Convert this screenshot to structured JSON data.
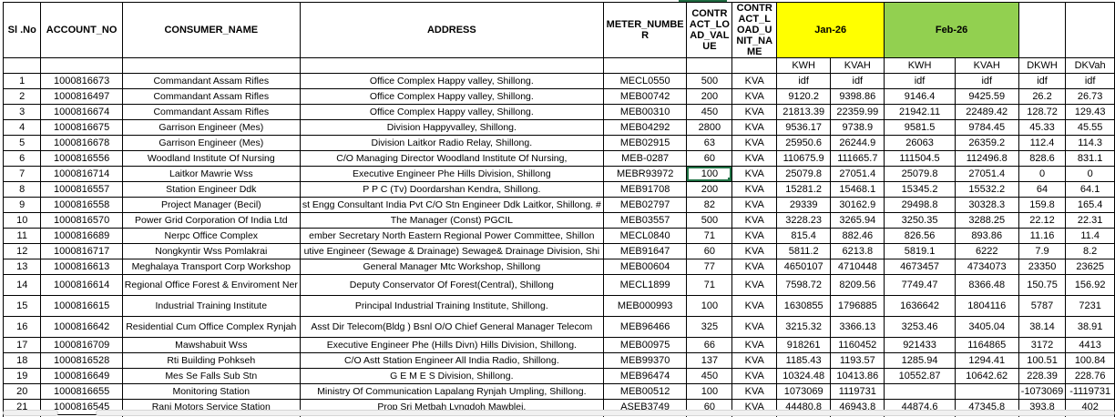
{
  "columns": {
    "sl_no": "Sl .No",
    "account_no": "ACCOUNT_NO",
    "consumer_name": "CONSUMER_NAME",
    "address": "ADDRESS",
    "meter_number": "METER_NUMBER",
    "contract_load_value": "CONTRACT_LOAD_VALUE",
    "contract_load_unit_name": "CONTRACT_LOAD_UNIT_NAME"
  },
  "month_groups": [
    {
      "label": "Jan-26",
      "color": "#FFFF00"
    },
    {
      "label": "Feb-26",
      "color": "#92D050"
    }
  ],
  "sub_headers": [
    "KWH",
    "KVAH",
    "KWH",
    "KVAH",
    "DKWH",
    "DKVah"
  ],
  "selection": {
    "row_sl": "7",
    "column_key": "load",
    "column": "CONTRACT_LOAD_VALUE",
    "value": "100",
    "border_color": "#217346"
  },
  "rows": [
    {
      "sl": "1",
      "account": "1000816673",
      "name": "Commandant Assam Rifles",
      "address": "Office Complex Happy valley, Shillong.",
      "meter": "MECL0550",
      "load": "500",
      "unit": "KVA",
      "jan_kwh": "idf",
      "jan_kvah": "idf",
      "feb_kwh": "idf",
      "feb_kvah": "idf",
      "dkwh": "idf",
      "dkvah": "idf"
    },
    {
      "sl": "2",
      "account": "1000816497",
      "name": "Commandant Assam Rifles",
      "address": "Office Complex Happy valley, Shillong.",
      "meter": "MEB00742",
      "load": "200",
      "unit": "KVA",
      "jan_kwh": "9120.2",
      "jan_kvah": "9398.86",
      "feb_kwh": "9146.4",
      "feb_kvah": "9425.59",
      "dkwh": "26.2",
      "dkvah": "26.73"
    },
    {
      "sl": "3",
      "account": "1000816674",
      "name": "Commandant Assam Rifles",
      "address": "Office Complex Happy valley, Shillong.",
      "meter": "MEB00310",
      "load": "450",
      "unit": "KVA",
      "jan_kwh": "21813.39",
      "jan_kvah": "22359.99",
      "feb_kwh": "21942.11",
      "feb_kvah": "22489.42",
      "dkwh": "128.72",
      "dkvah": "129.43"
    },
    {
      "sl": "4",
      "account": "1000816675",
      "name": "Garrison Engineer (Mes)",
      "address": "Division Happyvalley, Shillong.",
      "meter": "MEB04292",
      "load": "2800",
      "unit": "KVA",
      "jan_kwh": "9536.17",
      "jan_kvah": "9738.9",
      "feb_kwh": "9581.5",
      "feb_kvah": "9784.45",
      "dkwh": "45.33",
      "dkvah": "45.55"
    },
    {
      "sl": "5",
      "account": "1000816678",
      "name": "Garrison Engineer (Mes)",
      "address": "Division Laitkor Radio Relay, Shillong.",
      "meter": "MEB02915",
      "load": "63",
      "unit": "KVA",
      "jan_kwh": "25950.6",
      "jan_kvah": "26244.9",
      "feb_kwh": "26063",
      "feb_kvah": "26359.2",
      "dkwh": "112.4",
      "dkvah": "114.3"
    },
    {
      "sl": "6",
      "account": "1000816556",
      "name": "Woodland Institute Of Nursing",
      "address": "C/O Managing Director Woodland Institute Of Nursing,",
      "meter": "MEB-0287",
      "load": "60",
      "unit": "KVA",
      "jan_kwh": "110675.9",
      "jan_kvah": "111665.7",
      "feb_kwh": "111504.5",
      "feb_kvah": "112496.8",
      "dkwh": "828.6",
      "dkvah": "831.1"
    },
    {
      "sl": "7",
      "account": "1000816714",
      "name": "Laitkor Mawrie Wss",
      "address": "Executive Engineer Phe Hills Division, Shillong",
      "meter": "MEBR93972",
      "load": "100",
      "unit": "KVA",
      "jan_kwh": "25079.8",
      "jan_kvah": "27051.4",
      "feb_kwh": "25079.8",
      "feb_kvah": "27051.4",
      "dkwh": "0",
      "dkvah": "0"
    },
    {
      "sl": "8",
      "account": "1000816557",
      "name": "Station Engineer Ddk",
      "address": "P P C (Tv) Doordarshan Kendra, Shillong.",
      "meter": "MEB91708",
      "load": "200",
      "unit": "KVA",
      "jan_kwh": "15281.2",
      "jan_kvah": "15468.1",
      "feb_kwh": "15345.2",
      "feb_kvah": "15532.2",
      "dkwh": "64",
      "dkvah": "64.1"
    },
    {
      "sl": "9",
      "account": "1000816558",
      "name": "Project Manager (Becil)",
      "address": "st Engg Consultant India Pvt C/O Stn Engineer Ddk Laitkor, Shillong. #",
      "meter": "MEB02797",
      "load": "82",
      "unit": "KVA",
      "jan_kwh": "29339",
      "jan_kvah": "30162.9",
      "feb_kwh": "29498.8",
      "feb_kvah": "30328.3",
      "dkwh": "159.8",
      "dkvah": "165.4"
    },
    {
      "sl": "10",
      "account": "1000816570",
      "name": "Power Grid Corporation Of India Ltd",
      "address": "The Manager (Const) PGCIL",
      "meter": "MEB03557",
      "load": "500",
      "unit": "KVA",
      "jan_kwh": "3228.23",
      "jan_kvah": "3265.94",
      "feb_kwh": "3250.35",
      "feb_kvah": "3288.25",
      "dkwh": "22.12",
      "dkvah": "22.31"
    },
    {
      "sl": "11",
      "account": "1000816689",
      "name": "Nerpc Office Complex",
      "address": "ember Secretary North Eastern Regional Power Committee, Shillon",
      "meter": "MECL0840",
      "load": "71",
      "unit": "KVA",
      "jan_kwh": "815.4",
      "jan_kvah": "882.46",
      "feb_kwh": "826.56",
      "feb_kvah": "893.86",
      "dkwh": "11.16",
      "dkvah": "11.4"
    },
    {
      "sl": "12",
      "account": "1000816717",
      "name": "Nongkyntir Wss Pomlakrai",
      "address": "utive Engineer (Sewage & Drainage) Sewage& Drainage Division, Shi",
      "meter": "MEB91647",
      "load": "60",
      "unit": "KVA",
      "jan_kwh": "5811.2",
      "jan_kvah": "6213.8",
      "feb_kwh": "5819.1",
      "feb_kvah": "6222",
      "dkwh": "7.9",
      "dkvah": "8.2"
    },
    {
      "sl": "13",
      "account": "1000816613",
      "name": "Meghalaya Transport Corp Workshop",
      "address": "General Manager Mtc Workshop, Shillong",
      "meter": "MEB00604",
      "load": "77",
      "unit": "KVA",
      "jan_kwh": "4650107",
      "jan_kvah": "4710448",
      "feb_kwh": "4673457",
      "feb_kvah": "4734073",
      "dkwh": "23350",
      "dkvah": "23625"
    },
    {
      "sl": "14",
      "account": "1000816614",
      "name": "Regional Office Forest & Enviroment Ner",
      "address": "Deputy Conservator Of Forest(Central), Shillong",
      "meter": "MECL1899",
      "load": "71",
      "unit": "KVA",
      "jan_kwh": "7598.72",
      "jan_kvah": "8209.56",
      "feb_kwh": "7749.47",
      "feb_kvah": "8366.48",
      "dkwh": "150.75",
      "dkvah": "156.92",
      "tall": true
    },
    {
      "sl": "15",
      "account": "1000816615",
      "name": "Industrial Training Institute",
      "address": "Principal Industrial Training Institute, Shillong.",
      "meter": "MEB000993",
      "load": "100",
      "unit": "KVA",
      "jan_kwh": "1630855",
      "jan_kvah": "1796885",
      "feb_kwh": "1636642",
      "feb_kvah": "1804116",
      "dkwh": "5787",
      "dkvah": "7231",
      "tall": true
    },
    {
      "sl": "16",
      "account": "1000816642",
      "name": "Residential Cum Office Complex Rynjah",
      "address": "Asst Dir Telecom(Bldg ) Bsnl O/O Chief General Manager Telecom",
      "meter": "MEB96466",
      "load": "325",
      "unit": "KVA",
      "jan_kwh": "3215.32",
      "jan_kvah": "3366.13",
      "feb_kwh": "3253.46",
      "feb_kvah": "3405.04",
      "dkwh": "38.14",
      "dkvah": "38.91",
      "tall": true
    },
    {
      "sl": "17",
      "account": "1000816709",
      "name": "Mawshabuit Wss",
      "address": "Executive Engineer Phe (Hills Divn) Hills Division, Shillong.",
      "meter": "MEB00975",
      "load": "66",
      "unit": "KVA",
      "jan_kwh": "918261",
      "jan_kvah": "1160452",
      "feb_kwh": "921433",
      "feb_kvah": "1164865",
      "dkwh": "3172",
      "dkvah": "4413"
    },
    {
      "sl": "18",
      "account": "1000816528",
      "name": "Rti Building Pohkseh",
      "address": "C/O Astt Station Engineer All India Radio, Shillong.",
      "meter": "MEB99370",
      "load": "137",
      "unit": "KVA",
      "jan_kwh": "1185.43",
      "jan_kvah": "1193.57",
      "feb_kwh": "1285.94",
      "feb_kvah": "1294.41",
      "dkwh": "100.51",
      "dkvah": "100.84"
    },
    {
      "sl": "19",
      "account": "1000816649",
      "name": "Mes Se Falls Sub Stn",
      "address": "G E M E S Division, Shillong.",
      "meter": "MEB96474",
      "load": "450",
      "unit": "KVA",
      "jan_kwh": "10324.48",
      "jan_kvah": "10413.86",
      "feb_kwh": "10552.87",
      "feb_kvah": "10642.62",
      "dkwh": "228.39",
      "dkvah": "228.76"
    },
    {
      "sl": "20",
      "account": "1000816655",
      "name": "Monitoring Station",
      "address": "Ministry Of Communication Lapalang Rynjah Umpling, Shillong.",
      "meter": "MEB00512",
      "load": "100",
      "unit": "KVA",
      "jan_kwh": "1073069",
      "jan_kvah": "1119731",
      "feb_kwh": "",
      "feb_kvah": "",
      "dkwh": "-1073069",
      "dkvah": "-1119731"
    },
    {
      "sl": "21",
      "account": "1000816545",
      "name": "Rani Motors Service Station",
      "address": "Prop Sri Metbah Lyngdoh Mawblei,",
      "meter": "ASEB3749",
      "load": "60",
      "unit": "KVA",
      "jan_kwh": "44480.8",
      "jan_kvah": "46943.8",
      "feb_kwh": "44874.6",
      "feb_kvah": "47345.8",
      "dkwh": "393.8",
      "dkvah": "402"
    }
  ]
}
